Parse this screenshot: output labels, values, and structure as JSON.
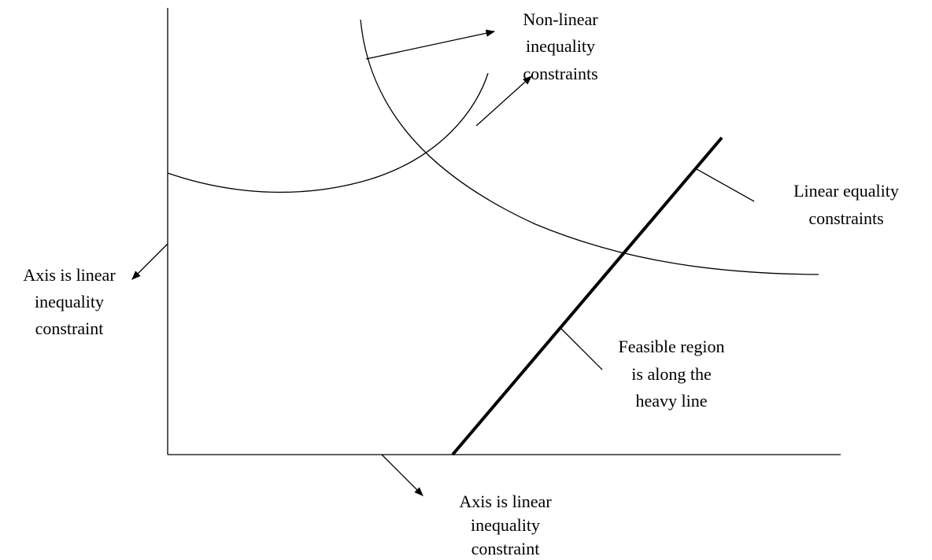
{
  "labels": {
    "nonlinear": [
      "Non-linear",
      "inequality",
      "constraints"
    ],
    "linear_equality": [
      "Linear equality",
      "constraints"
    ],
    "y_axis": [
      "Axis is linear",
      "inequality",
      "constraint"
    ],
    "feasible": [
      "Feasible region",
      "is along the",
      "heavy line"
    ],
    "x_axis": [
      "Axis is linear",
      "inequality",
      "constraint"
    ]
  }
}
